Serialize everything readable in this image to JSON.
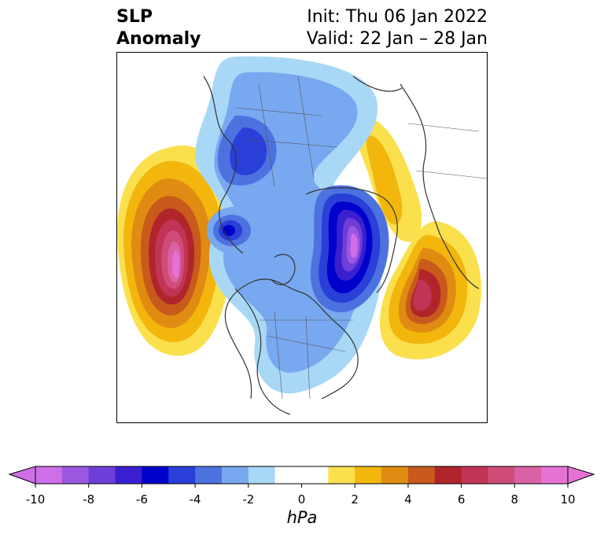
{
  "header": {
    "variable_line1": "SLP",
    "variable_line2": "Anomaly",
    "init": "Init: Thu 06 Jan 2022",
    "valid": "Valid: 22 Jan – 28 Jan"
  },
  "colorbar": {
    "unit": "hPa",
    "min": -10,
    "max": 10,
    "tick_labels": [
      "-10",
      "-8",
      "-6",
      "-4",
      "-2",
      "0",
      "2",
      "4",
      "6",
      "8",
      "10"
    ],
    "tick_values": [
      -10,
      -8,
      -6,
      -4,
      -2,
      0,
      2,
      4,
      6,
      8,
      10
    ],
    "colors": [
      "#cf6fe8",
      "#9c57e0",
      "#6e3fd8",
      "#3a1fcf",
      "#0000cc",
      "#2a3fd8",
      "#4d72e0",
      "#78a8ef",
      "#a9d8f7",
      "#ffffff",
      "#ffffff",
      "#fbe04e",
      "#f2b60d",
      "#e08b12",
      "#c85a1b",
      "#b0252b",
      "#c23456",
      "#cf4c78",
      "#da62a4",
      "#e772d6"
    ],
    "extend": "both"
  },
  "map": {
    "projection": "north-polar-stereographic",
    "field": "SLP Anomaly"
  }
}
